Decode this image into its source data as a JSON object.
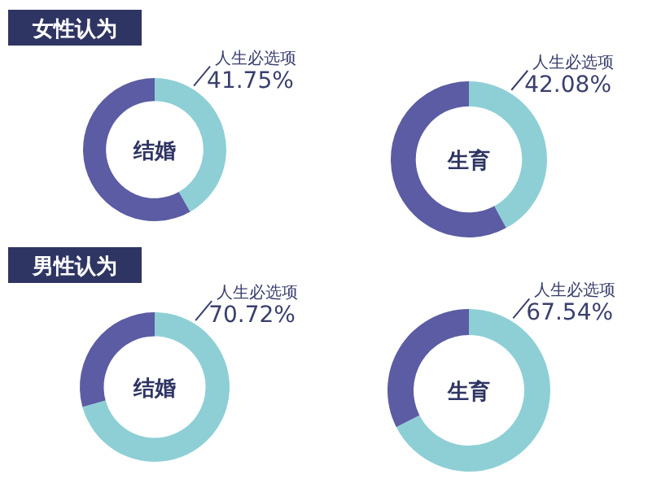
{
  "chart_data": [
    {
      "type": "donut",
      "title": "女性认为",
      "annotations": [
        "结婚"
      ],
      "categories": [
        "人生必选项",
        null
      ],
      "values": [
        41.75,
        58.25
      ],
      "colors": [
        "#8ecfd6",
        "#5b5ca3"
      ],
      "value_labels": [
        "41.75%",
        null
      ]
    },
    {
      "type": "donut",
      "annotations": [
        "生育"
      ],
      "categories": [
        "人生必选项",
        null
      ],
      "values": [
        42.08,
        57.92
      ],
      "colors": [
        "#8ecfd6",
        "#5b5ca3"
      ],
      "value_labels": [
        "42.08%",
        null
      ]
    },
    {
      "type": "donut",
      "title": "男性认为",
      "annotations": [
        "结婚"
      ],
      "categories": [
        "人生必选项",
        null
      ],
      "values": [
        70.72,
        29.28
      ],
      "colors": [
        "#8ecfd6",
        "#5b5ca3"
      ],
      "value_labels": [
        "70.72%",
        null
      ]
    },
    {
      "type": "donut",
      "annotations": [
        "生育"
      ],
      "categories": [
        "人生必选项",
        null
      ],
      "values": [
        67.54,
        32.46
      ],
      "colors": [
        "#8ecfd6",
        "#5b5ca3"
      ],
      "value_labels": [
        "67.54%",
        null
      ]
    }
  ]
}
